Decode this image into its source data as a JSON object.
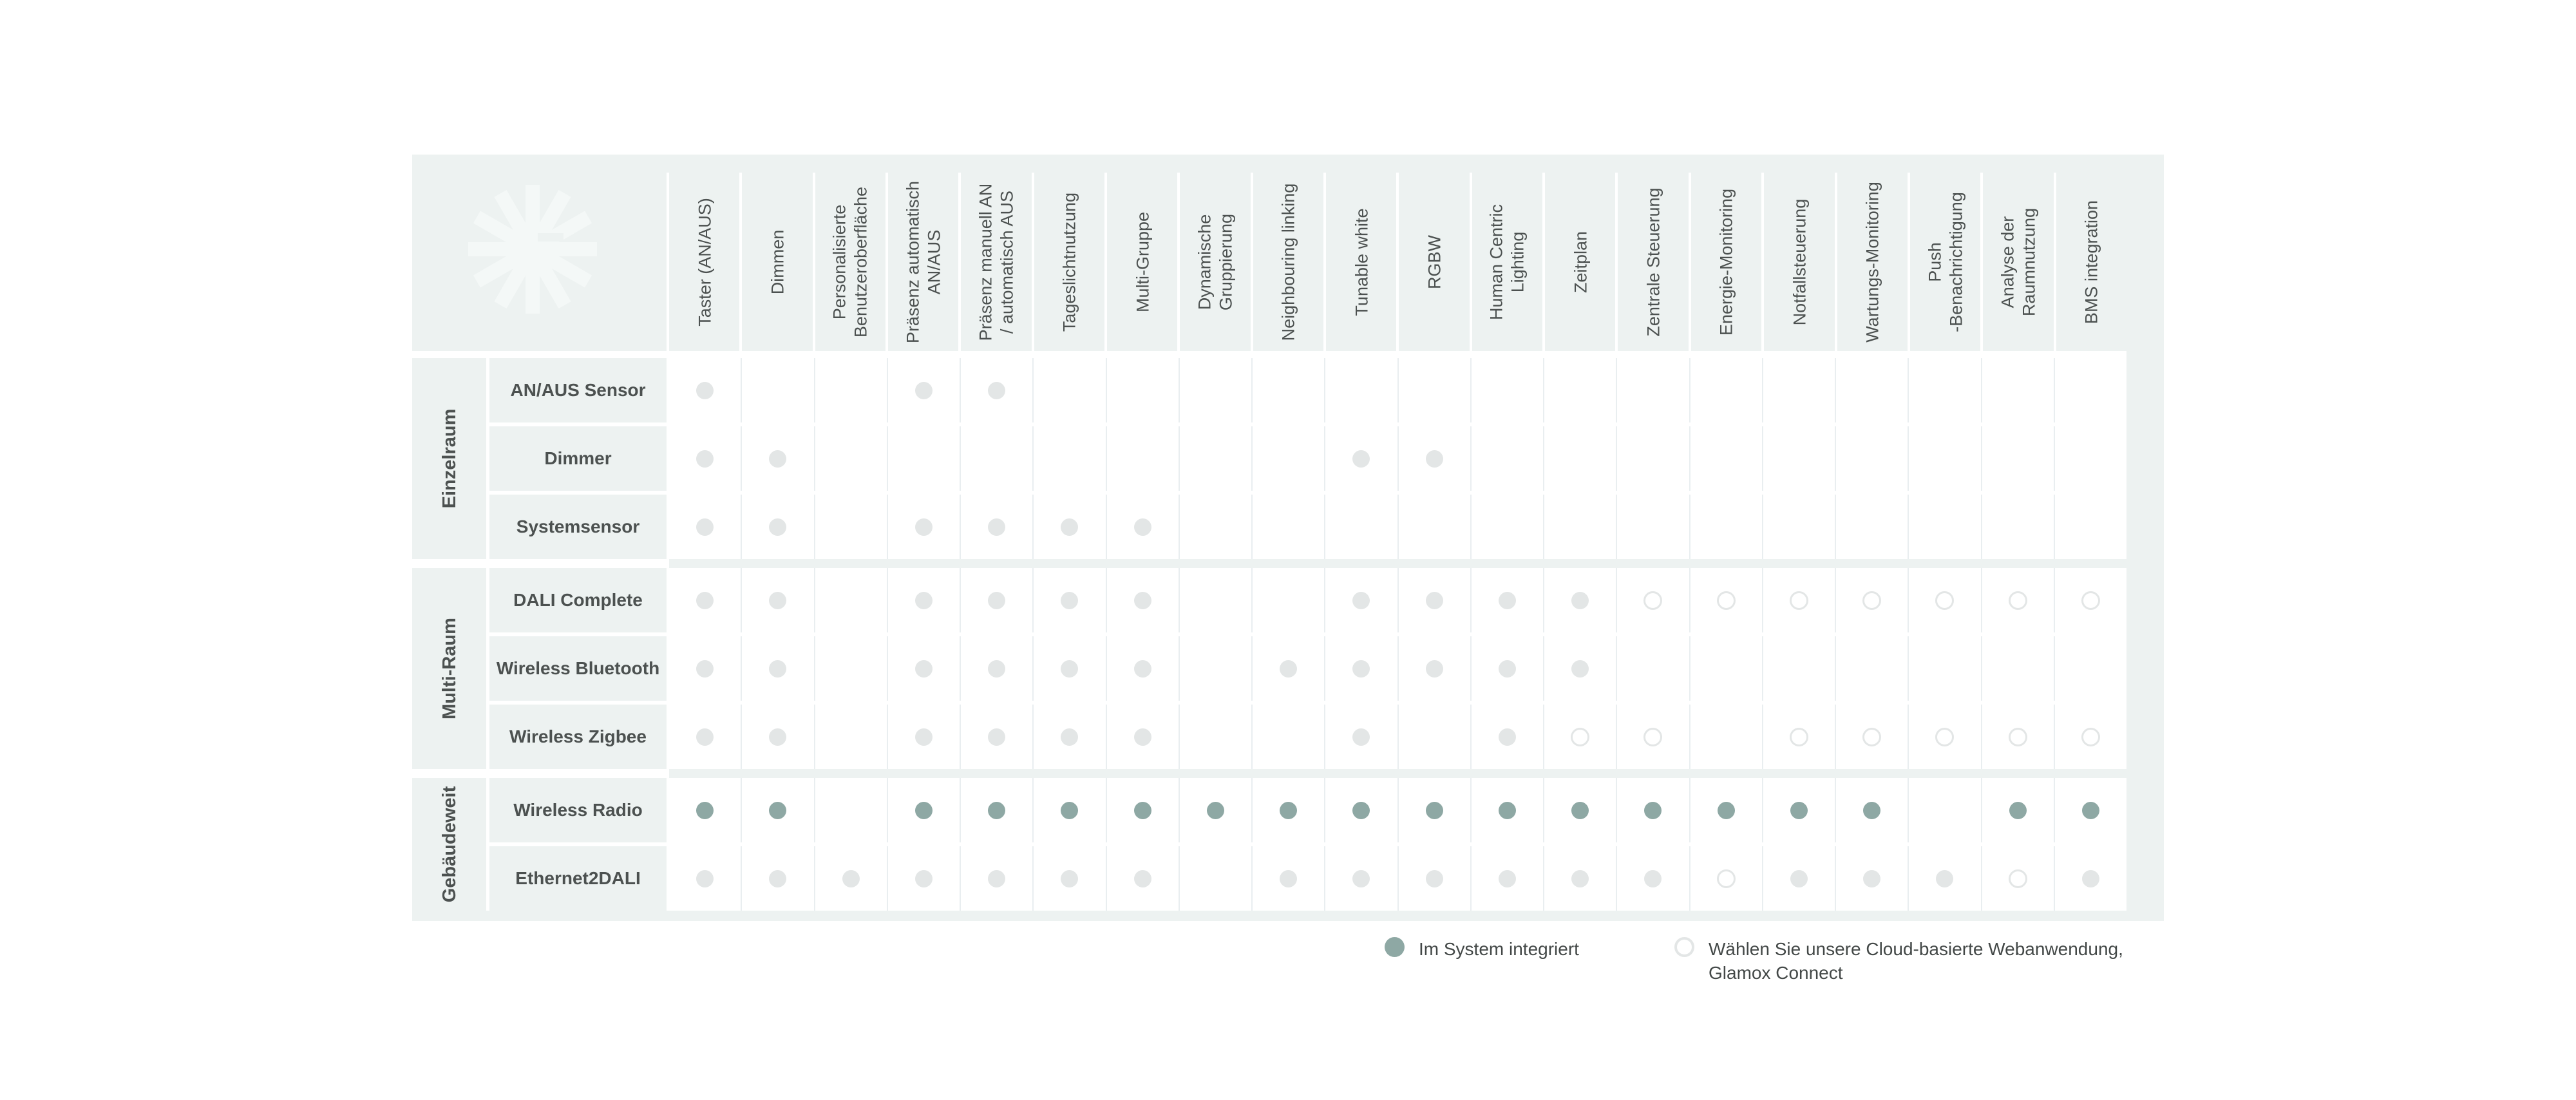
{
  "colors": {
    "table_bg": "#edf2f1",
    "watermark": "#f4f8f7",
    "grid_line": "#e9eef0",
    "dot_gray": "#e3e6e6",
    "teal": "#8ea8a4",
    "text": "#4c5150"
  },
  "chart_data": {
    "type": "table",
    "title": "",
    "description": "Feature availability matrix of lighting control systems; rows are products grouped by scope, columns are features, cells are dots: g = gray filled (im System integriert), t = teal filled (im System integriert, highlighted row), o = outlined (Cloud-basierte Webanwendung Glamox Connect), empty = not available",
    "columns": [
      "Taster (AN/AUS)",
      "Dimmen",
      "Personalisierte\nBenutzeroberfläche",
      "Präsenz automatisch\nAN/AUS",
      "Präsenz manuell AN\n/ automatisch AUS",
      "Tageslichtnutzung",
      "Multi-Gruppe",
      "Dynamische\nGruppierung",
      "Neighbouring linking",
      "Tunable white",
      "RGBW",
      "Human Centric\nLighting",
      "Zeitplan",
      "Zentrale Steuerung",
      "Energie-Monitoring",
      "Notfallsteuerung",
      "Wartungs-Monitoring",
      "Push\n-Benachrichtigung",
      "Analyse der\nRaumnutzung",
      "BMS integration"
    ],
    "row_groups": [
      {
        "label": "Einzelraum",
        "rows": [
          {
            "label": "AN/AUS Sensor",
            "cells": [
              "g",
              "",
              "",
              "g",
              "g",
              "",
              "",
              "",
              "",
              "",
              "",
              "",
              "",
              "",
              "",
              "",
              "",
              "",
              "",
              ""
            ]
          },
          {
            "label": "Dimmer",
            "cells": [
              "g",
              "g",
              "",
              "",
              "",
              "",
              "",
              "",
              "",
              "g",
              "g",
              "",
              "",
              "",
              "",
              "",
              "",
              "",
              "",
              ""
            ]
          },
          {
            "label": "Systemsensor",
            "cells": [
              "g",
              "g",
              "",
              "g",
              "g",
              "g",
              "g",
              "",
              "",
              "",
              "",
              "",
              "",
              "",
              "",
              "",
              "",
              "",
              "",
              ""
            ]
          }
        ]
      },
      {
        "label": "Multi-Raum",
        "rows": [
          {
            "label": "DALI Complete",
            "cells": [
              "g",
              "g",
              "",
              "g",
              "g",
              "g",
              "g",
              "",
              "",
              "g",
              "g",
              "g",
              "g",
              "o",
              "o",
              "o",
              "o",
              "o",
              "o",
              "o"
            ]
          },
          {
            "label": "Wireless Bluetooth",
            "cells": [
              "g",
              "g",
              "",
              "g",
              "g",
              "g",
              "g",
              "",
              "g",
              "g",
              "g",
              "g",
              "g",
              "",
              "",
              "",
              "",
              "",
              "",
              ""
            ]
          },
          {
            "label": "Wireless Zigbee",
            "cells": [
              "g",
              "g",
              "",
              "g",
              "g",
              "g",
              "g",
              "",
              "",
              "g",
              "",
              "g",
              "o",
              "o",
              "",
              "o",
              "o",
              "o",
              "o",
              "o"
            ]
          }
        ]
      },
      {
        "label": "Gebäudeweit",
        "rows": [
          {
            "label": "Wireless Radio",
            "cells": [
              "t",
              "t",
              "",
              "t",
              "t",
              "t",
              "t",
              "t",
              "t",
              "t",
              "t",
              "t",
              "t",
              "t",
              "t",
              "t",
              "t",
              "",
              "t",
              "t"
            ]
          },
          {
            "label": "Ethernet2DALI",
            "cells": [
              "g",
              "g",
              "g",
              "g",
              "g",
              "g",
              "g",
              "",
              "g",
              "g",
              "g",
              "g",
              "g",
              "g",
              "o",
              "g",
              "g",
              "g",
              "o",
              "g"
            ]
          }
        ]
      }
    ],
    "legend": [
      {
        "marker": "teal-filled-dot",
        "label": "Im System integriert"
      },
      {
        "marker": "outline-circle",
        "label": "Wählen Sie unsere Cloud-basierte Webanwendung,\nGlamox Connect"
      }
    ]
  }
}
